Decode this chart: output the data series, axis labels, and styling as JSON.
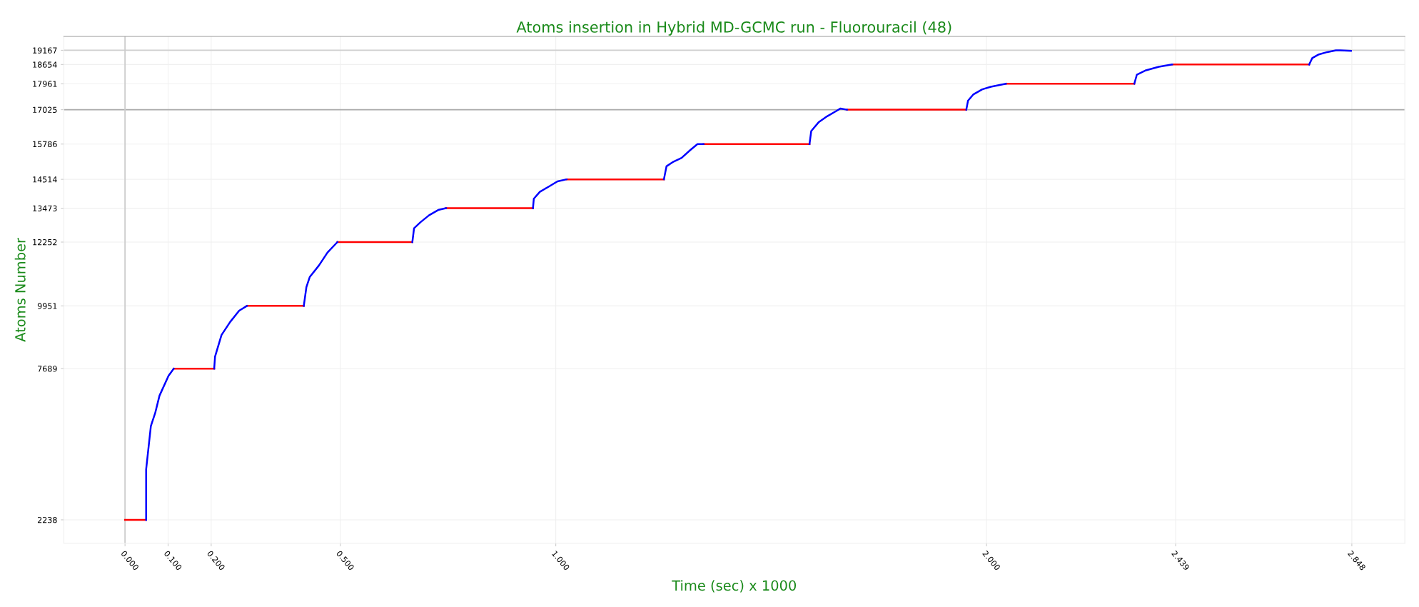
{
  "chart_data": {
    "type": "line",
    "title": "Atoms insertion in Hybrid MD-GCMC run - Fluorouracil (48)",
    "xlabel": "Time (sec) x 1000",
    "ylabel": "Atoms Number",
    "series": [
      {
        "color": "#ff0000",
        "x": [
          0,
          0.049,
          null,
          0.113,
          0.207,
          null,
          0.283,
          0.415,
          null,
          0.493,
          0.667,
          null,
          0.745,
          0.947,
          null,
          1.025,
          1.251,
          null,
          1.343,
          1.589,
          null,
          1.676,
          1.953,
          null,
          2.045,
          2.343,
          null,
          2.431,
          2.749
        ],
        "values": [
          2238,
          2238,
          null,
          7689,
          7689,
          null,
          9951,
          9951,
          null,
          12252,
          12252,
          null,
          13473,
          13473,
          null,
          14514,
          14514,
          null,
          15786,
          15786,
          null,
          17025,
          17025,
          null,
          17961,
          17961,
          null,
          18654,
          18654
        ]
      },
      {
        "color": "#0000ff",
        "x": [
          0.049,
          0.049,
          0.06,
          0.07,
          0.08,
          0.101,
          0.113,
          null,
          0.207,
          0.209,
          0.224,
          0.244,
          0.265,
          0.283,
          null,
          0.415,
          0.421,
          0.429,
          0.45,
          0.47,
          0.493,
          null,
          0.667,
          0.671,
          0.686,
          0.706,
          0.727,
          0.745,
          null,
          0.947,
          0.949,
          0.963,
          0.984,
          1.004,
          1.025,
          null,
          1.251,
          1.257,
          1.271,
          1.292,
          1.312,
          1.329,
          1.343,
          null,
          1.589,
          1.593,
          1.61,
          1.63,
          1.651,
          1.661,
          1.676,
          null,
          1.953,
          1.957,
          1.969,
          1.99,
          2.01,
          2.045,
          null,
          2.343,
          2.349,
          2.37,
          2.4,
          2.431,
          null,
          2.749,
          2.756,
          2.77,
          2.791,
          2.811,
          2.821,
          2.846
        ],
        "values": [
          2238,
          4053,
          5617,
          6087,
          6713,
          7433,
          7689,
          null,
          7689,
          8120,
          8903,
          9372,
          9779,
          9951,
          null,
          9951,
          10624,
          10999,
          11406,
          11875,
          12252,
          null,
          12252,
          12751,
          12970,
          13221,
          13409,
          13473,
          null,
          13473,
          13815,
          14065,
          14253,
          14441,
          14514,
          null,
          14514,
          14984,
          15130,
          15286,
          15567,
          15786,
          15786,
          null,
          15786,
          16256,
          16569,
          16788,
          16976,
          17069,
          17025,
          null,
          17025,
          17351,
          17570,
          17758,
          17852,
          17961,
          null,
          17961,
          18289,
          18446,
          18571,
          18654,
          null,
          18654,
          18884,
          19009,
          19103,
          19167,
          19167,
          19150
        ]
      }
    ],
    "xlim": [
      -0.142,
      2.971
    ],
    "ylim": [
      1393,
      19667
    ],
    "xticks": [
      {
        "value": 0,
        "label": "0.000"
      },
      {
        "value": 0.1,
        "label": "0.100"
      },
      {
        "value": 0.2,
        "label": "0.200"
      },
      {
        "value": 0.5,
        "label": "0.500"
      },
      {
        "value": 1,
        "label": "1.000"
      },
      {
        "value": 2,
        "label": "2.000"
      },
      {
        "value": 2.439,
        "label": "2.439"
      },
      {
        "value": 2.848,
        "label": "2.848"
      }
    ],
    "yticks": [
      2238,
      7689,
      9951,
      12252,
      13473,
      14514,
      15786,
      17025,
      17961,
      18654,
      19167
    ],
    "ref_lines": [
      {
        "axis": "y",
        "value": 17025,
        "color": "#aaaaaa"
      },
      {
        "axis": "y",
        "value": 19167,
        "color": "#d0d0d0"
      },
      {
        "axis": "x",
        "value": 0,
        "color": "#cccccc"
      }
    ],
    "grid": true,
    "line_style": "solid",
    "marker": "none"
  }
}
